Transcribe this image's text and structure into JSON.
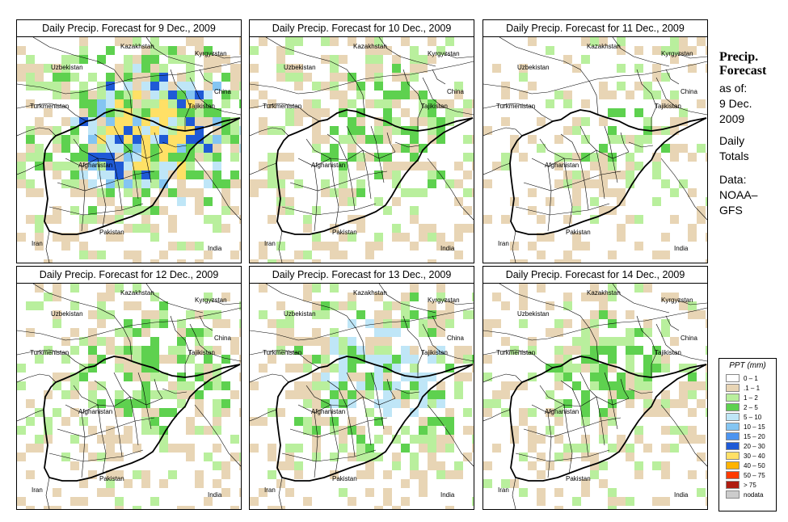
{
  "panels": [
    {
      "title": "Daily Precip. Forecast for  9 Dec., 2009",
      "intensity": 5
    },
    {
      "title": "Daily Precip. Forecast for  10 Dec., 2009",
      "intensity": 2
    },
    {
      "title": "Daily Precip. Forecast for  11 Dec., 2009",
      "intensity": 1
    },
    {
      "title": "Daily Precip. Forecast for  12 Dec., 2009",
      "intensity": 2
    },
    {
      "title": "Daily Precip. Forecast for  13 Dec., 2009",
      "intensity": 3
    },
    {
      "title": "Daily Precip. Forecast for  14 Dec., 2009",
      "intensity": 2
    }
  ],
  "map_labels": {
    "uzbekistan": "Uzbekistan",
    "kazakhstan": "Kazakhstan",
    "kyrgyzstan": "Kyrgyzstan",
    "turkmenistan": "Turkmenistan",
    "tajikistan": "Tajikistan",
    "china": "China",
    "afghanistan": "Afghanistan",
    "pakistan": "Pakistan",
    "iran": "Iran",
    "india": "India"
  },
  "side": {
    "title_line1": "Precip.",
    "title_line2": "Forecast",
    "asof": "as of:",
    "date_line1": "9 Dec.",
    "date_line2": "2009",
    "daily": "Daily",
    "totals": "Totals",
    "data": "Data:",
    "source_line1": "NOAA–",
    "source_line2": "GFS"
  },
  "legend": {
    "title": "PPT (mm)",
    "items": [
      {
        "range": "0 – 1",
        "color": "#ffffff"
      },
      {
        "range": ".1 – 1",
        "color": "#e8d5b5"
      },
      {
        "range": "1 – 2",
        "color": "#b9ef9d"
      },
      {
        "range": "2 – 5",
        "color": "#5ed14f"
      },
      {
        "range": "5 – 10",
        "color": "#bfe6f7"
      },
      {
        "range": "10 – 15",
        "color": "#84c5f2"
      },
      {
        "range": "15 – 20",
        "color": "#4d94f0"
      },
      {
        "range": "20 – 30",
        "color": "#1f5ad6"
      },
      {
        "range": "30 – 40",
        "color": "#ffe066"
      },
      {
        "range": "40 – 50",
        "color": "#ffb300"
      },
      {
        "range": "50 – 75",
        "color": "#ff3b00"
      },
      {
        "range": "> 75",
        "color": "#b01c10"
      },
      {
        "range": "nodata",
        "color": "#cccccc"
      }
    ]
  }
}
